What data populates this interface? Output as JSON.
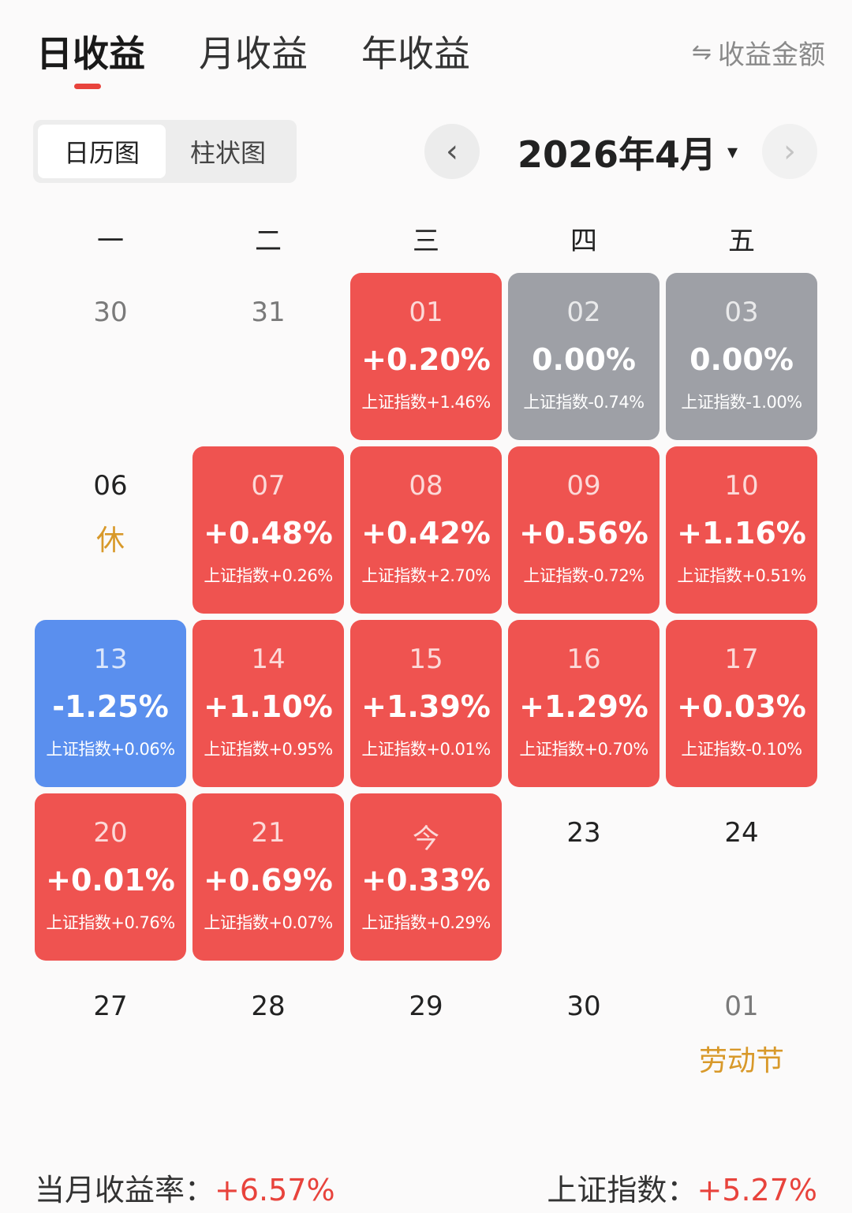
{
  "tabs": {
    "daily": "日收益",
    "monthly": "月收益",
    "yearly": "年收益"
  },
  "toggle": {
    "icon": "swap-icon",
    "label": "收益金额"
  },
  "view_switch": {
    "calendar": "日历图",
    "bar": "柱状图"
  },
  "nav": {
    "prev_icon": "‹",
    "next_icon": "›"
  },
  "month": {
    "label": "2026年4月",
    "caret": "▾"
  },
  "weekdays": [
    "一",
    "二",
    "三",
    "四",
    "五"
  ],
  "calendar": {
    "w1": [
      {
        "day": "30",
        "state": "blank-muted"
      },
      {
        "day": "31",
        "state": "blank-muted"
      },
      {
        "day": "01",
        "pct": "+0.20%",
        "idx": "上证指数+1.46%",
        "state": "up"
      },
      {
        "day": "02",
        "pct": "0.00%",
        "idx": "上证指数-0.74%",
        "state": "flat"
      },
      {
        "day": "03",
        "pct": "0.00%",
        "idx": "上证指数-1.00%",
        "state": "flat"
      }
    ],
    "w2": [
      {
        "day": "06",
        "note": "休",
        "state": "blank"
      },
      {
        "day": "07",
        "pct": "+0.48%",
        "idx": "上证指数+0.26%",
        "state": "up"
      },
      {
        "day": "08",
        "pct": "+0.42%",
        "idx": "上证指数+2.70%",
        "state": "up"
      },
      {
        "day": "09",
        "pct": "+0.56%",
        "idx": "上证指数-0.72%",
        "state": "up"
      },
      {
        "day": "10",
        "pct": "+1.16%",
        "idx": "上证指数+0.51%",
        "state": "up"
      }
    ],
    "w3": [
      {
        "day": "13",
        "pct": "-1.25%",
        "idx": "上证指数+0.06%",
        "state": "down"
      },
      {
        "day": "14",
        "pct": "+1.10%",
        "idx": "上证指数+0.95%",
        "state": "up"
      },
      {
        "day": "15",
        "pct": "+1.39%",
        "idx": "上证指数+0.01%",
        "state": "up"
      },
      {
        "day": "16",
        "pct": "+1.29%",
        "idx": "上证指数+0.70%",
        "state": "up"
      },
      {
        "day": "17",
        "pct": "+0.03%",
        "idx": "上证指数-0.10%",
        "state": "up"
      }
    ],
    "w4": [
      {
        "day": "20",
        "pct": "+0.01%",
        "idx": "上证指数+0.76%",
        "state": "up"
      },
      {
        "day": "21",
        "pct": "+0.69%",
        "idx": "上证指数+0.07%",
        "state": "up"
      },
      {
        "day": "今",
        "pct": "+0.33%",
        "idx": "上证指数+0.29%",
        "state": "up"
      },
      {
        "day": "23",
        "state": "blank"
      },
      {
        "day": "24",
        "state": "blank"
      }
    ],
    "w5": [
      {
        "day": "27",
        "state": "blank"
      },
      {
        "day": "28",
        "state": "blank"
      },
      {
        "day": "29",
        "state": "blank"
      },
      {
        "day": "30",
        "state": "blank"
      },
      {
        "day": "01",
        "note": "劳动节",
        "state": "blank-muted"
      }
    ]
  },
  "summary": {
    "month_rate_label": "当月收益率：",
    "month_rate_value": "+6.57%",
    "index_label": "上证指数：",
    "index_value": "+5.27%"
  },
  "colors": {
    "up": "#ef5350",
    "flat": "#9ea0a6",
    "down": "#5a8fee",
    "accent": "#e8433c",
    "holiday": "#d8992a"
  }
}
